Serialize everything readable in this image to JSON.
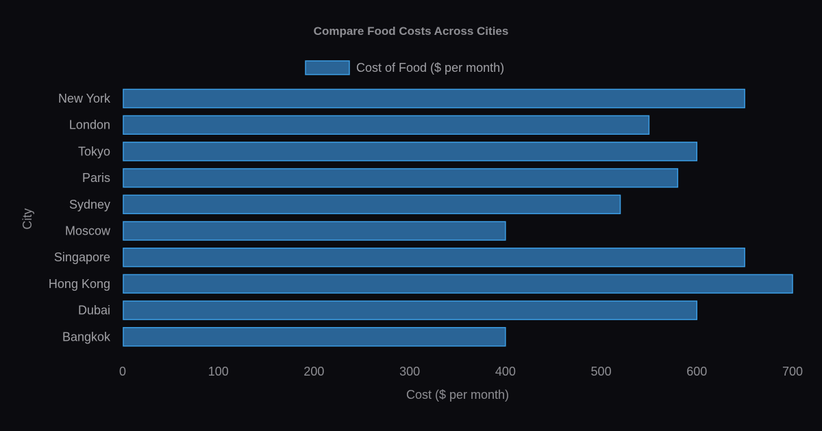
{
  "chart_data": {
    "type": "bar",
    "orientation": "horizontal",
    "title": "Compare Food Costs Across Cities",
    "xlabel": "Cost ($ per month)",
    "ylabel": "City",
    "categories": [
      "New York",
      "London",
      "Tokyo",
      "Paris",
      "Sydney",
      "Moscow",
      "Singapore",
      "Hong Kong",
      "Dubai",
      "Bangkok"
    ],
    "series": [
      {
        "name": "Cost of Food ($ per month)",
        "values": [
          650,
          550,
          600,
          580,
          520,
          400,
          650,
          700,
          600,
          400
        ]
      }
    ],
    "xlim": [
      0,
      700
    ],
    "xticks": [
      "0",
      "100",
      "200",
      "300",
      "400",
      "500",
      "600",
      "700"
    ],
    "grid": false,
    "legend_position": "top-center",
    "colors": {
      "bar_fill": "#2a6496",
      "bar_stroke": "#3c9ee5",
      "background": "#0b0b0f"
    }
  }
}
